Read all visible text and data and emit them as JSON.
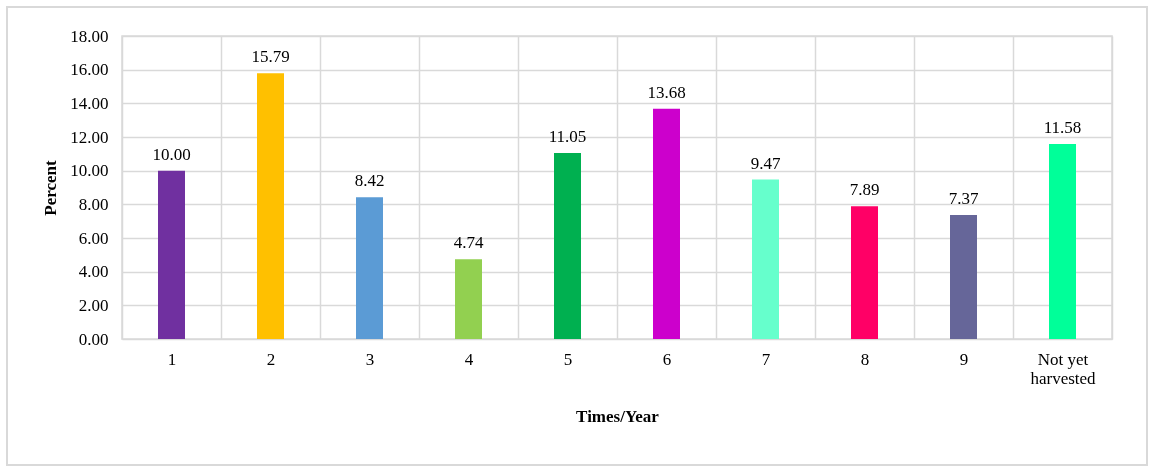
{
  "chart_data": {
    "type": "bar",
    "xlabel": "Times/Year",
    "ylabel": "Percent",
    "categories": [
      "1",
      "2",
      "3",
      "4",
      "5",
      "6",
      "7",
      "8",
      "9",
      "Not yet harvested"
    ],
    "values": [
      10.0,
      15.79,
      8.42,
      4.74,
      11.05,
      13.68,
      9.47,
      7.89,
      7.37,
      11.58
    ],
    "colors": [
      "#7030a0",
      "#ffc000",
      "#5b9bd5",
      "#92d050",
      "#00b050",
      "#cc00cc",
      "#66ffcc",
      "#ff0066",
      "#666699",
      "#00ff99"
    ],
    "value_labels": [
      "10.00",
      "15.79",
      "8.42",
      "4.74",
      "11.05",
      "13.68",
      "9.47",
      "7.89",
      "7.37",
      "11.58"
    ],
    "ylim": [
      0,
      18
    ],
    "yticks": [
      {
        "value": 0,
        "label": "0.00"
      },
      {
        "value": 2,
        "label": "2.00"
      },
      {
        "value": 4,
        "label": "4.00"
      },
      {
        "value": 6,
        "label": "6.00"
      },
      {
        "value": 8,
        "label": "8.00"
      },
      {
        "value": 10,
        "label": "10.00"
      },
      {
        "value": 12,
        "label": "12.00"
      },
      {
        "value": 14,
        "label": "14.00"
      },
      {
        "value": 16,
        "label": "16.00"
      },
      {
        "value": 18,
        "label": "18.00"
      }
    ],
    "grid": true,
    "legend": false
  }
}
